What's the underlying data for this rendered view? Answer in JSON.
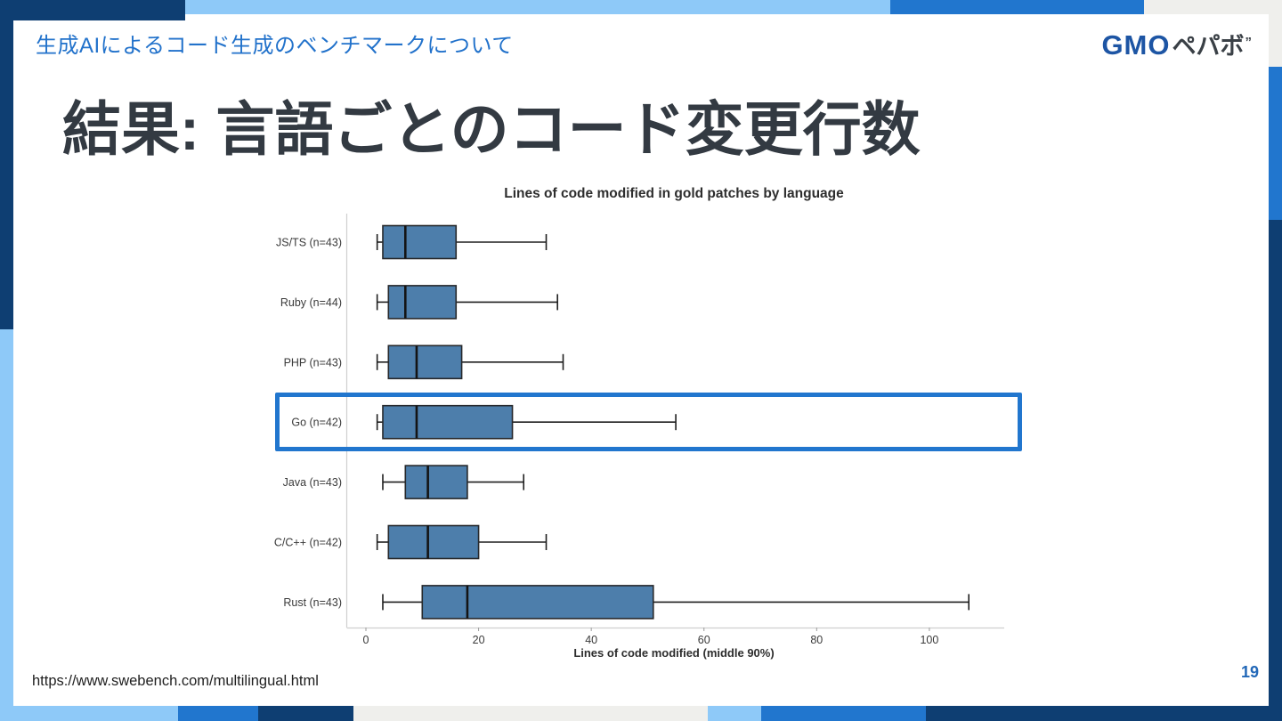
{
  "palette": {
    "navy": "#0e3e72",
    "blue": "#2176ce",
    "light_blue": "#8ec9f8",
    "light_gray": "#efefec",
    "header_blue": "#2272cb",
    "title_dark": "#333a42",
    "box_fill": "#4d7eab",
    "page_blue": "#2268b8"
  },
  "top_bar": {
    "title": "生成AIによるコード生成のベンチマークについて",
    "logo_gmo": "GMO",
    "logo_pepabo": "ペパボ",
    "logo_mark": "”"
  },
  "slide": {
    "title": "結果: 言語ごとのコード変更行数",
    "source_url": "https://www.swebench.com/multilingual.html",
    "page_number": "19"
  },
  "chart_data": {
    "type": "boxplot",
    "orientation": "horizontal",
    "title": "Lines of code modified in gold patches by language",
    "xlabel": "Lines of code modified (middle 90%)",
    "xticks": [
      0,
      20,
      40,
      60,
      80,
      100
    ],
    "xlim": [
      -3.5,
      112
    ],
    "grid": false,
    "legend": false,
    "categories": [
      "JS/TS (n=43)",
      "Ruby (n=44)",
      "PHP (n=43)",
      "Go (n=42)",
      "Java (n=43)",
      "C/C++ (n=42)",
      "Rust (n=43)"
    ],
    "boxes": [
      {
        "category": "JS/TS (n=43)",
        "whisker_low": 2,
        "q1": 3,
        "median": 7,
        "q3": 16,
        "whisker_high": 32
      },
      {
        "category": "Ruby (n=44)",
        "whisker_low": 2,
        "q1": 4,
        "median": 7,
        "q3": 16,
        "whisker_high": 34
      },
      {
        "category": "PHP (n=43)",
        "whisker_low": 2,
        "q1": 4,
        "median": 9,
        "q3": 17,
        "whisker_high": 35
      },
      {
        "category": "Go (n=42)",
        "whisker_low": 2,
        "q1": 3,
        "median": 9,
        "q3": 26,
        "whisker_high": 55
      },
      {
        "category": "Java (n=43)",
        "whisker_low": 3,
        "q1": 7,
        "median": 11,
        "q3": 18,
        "whisker_high": 28
      },
      {
        "category": "C/C++ (n=42)",
        "whisker_low": 2,
        "q1": 4,
        "median": 11,
        "q3": 20,
        "whisker_high": 32
      },
      {
        "category": "Rust (n=43)",
        "whisker_low": 3,
        "q1": 10,
        "median": 18,
        "q3": 51,
        "whisker_high": 107
      }
    ],
    "highlighted_category": "Go (n=42)"
  }
}
